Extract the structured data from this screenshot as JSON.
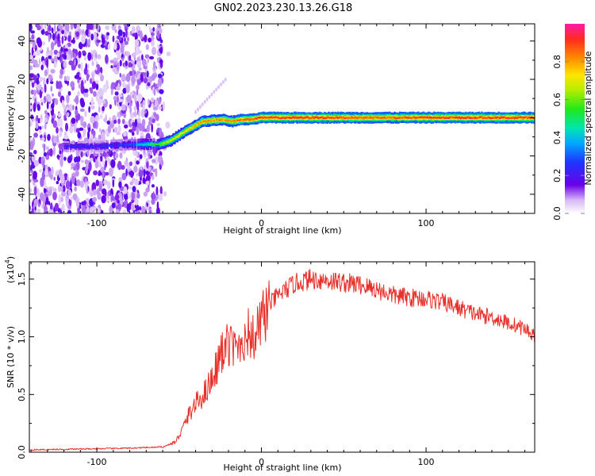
{
  "title": "GN02.2023.230.13.26.G18",
  "colorbar": {
    "label": "Normalized spectral amplitude",
    "range": [
      0,
      1
    ],
    "ticks": [
      0.0,
      0.2,
      0.4,
      0.6,
      0.8
    ],
    "tick_labels": [
      "0.0",
      "0.2",
      "0.4",
      "0.6",
      "0.8"
    ]
  },
  "chart_data": [
    {
      "type": "heatmap",
      "title": "GN02.2023.230.13.26.G18",
      "xlabel": "Height of straight line (km)",
      "ylabel": "Frequency (Hz)",
      "xlim": [
        -141,
        166
      ],
      "ylim": [
        -50,
        49
      ],
      "x_ticks": [
        -100,
        0,
        100
      ],
      "x_tick_labels": [
        "-100",
        "0",
        "100"
      ],
      "y_ticks": [
        -40,
        -20,
        0,
        20,
        40
      ],
      "y_tick_labels": [
        "-40",
        "-20",
        "0",
        "20",
        "40"
      ],
      "noise_region_x": [
        -141,
        -60
      ],
      "ridge": {
        "x": [
          -120,
          -100,
          -80,
          -62,
          -55,
          -48,
          -42,
          -36,
          -30,
          -24,
          -18,
          -12,
          -6,
          0,
          20,
          40,
          60,
          80,
          100,
          120,
          140,
          166
        ],
        "y": [
          -15,
          -15,
          -14,
          -14,
          -12,
          -8,
          -5,
          -2,
          -1.5,
          -1,
          -2,
          -1,
          -1,
          0,
          0,
          0,
          0,
          0,
          0,
          0,
          0,
          0
        ],
        "peak_amplitude": [
          0.25,
          0.25,
          0.3,
          0.6,
          0.7,
          0.75,
          0.8,
          0.85,
          0.85,
          0.85,
          0.85,
          0.9,
          0.9,
          0.95,
          0.95,
          0.95,
          0.9,
          0.9,
          0.95,
          0.95,
          0.95,
          0.95
        ]
      }
    },
    {
      "type": "line",
      "xlabel": "Height of straight line (km)",
      "ylabel": "SNR (10 * v/v)",
      "y_multiplier": "(x10",
      "y_multiplier_exp": "4",
      "y_multiplier_close": ")",
      "xlim": [
        -141,
        166
      ],
      "ylim": [
        0,
        16500
      ],
      "x_ticks": [
        -100,
        0,
        100
      ],
      "x_tick_labels": [
        "-100",
        "0",
        "100"
      ],
      "y_ticks": [
        0,
        5000,
        10000,
        15000
      ],
      "y_tick_labels": [
        "0.0",
        "0.5",
        "1.0",
        "1.5"
      ],
      "color": "#e8302a",
      "series": [
        {
          "x": [
            -141,
            -120,
            -100,
            -80,
            -60,
            -52,
            -48,
            -44,
            -40,
            -36,
            -32,
            -28,
            -24,
            -20,
            -16,
            -12,
            -8,
            -4,
            0,
            5,
            10,
            20,
            30,
            40,
            50,
            60,
            70,
            80,
            90,
            100,
            110,
            120,
            130,
            140,
            150,
            160,
            166
          ],
          "values": [
            200,
            250,
            300,
            350,
            450,
            900,
            2000,
            3300,
            4200,
            4800,
            5800,
            7200,
            8600,
            9300,
            8900,
            9700,
            10300,
            9800,
            11500,
            12800,
            13600,
            14600,
            15000,
            14900,
            14700,
            14500,
            14100,
            13600,
            13400,
            13300,
            13000,
            12500,
            12000,
            11700,
            11200,
            10700,
            10100
          ]
        }
      ]
    }
  ]
}
